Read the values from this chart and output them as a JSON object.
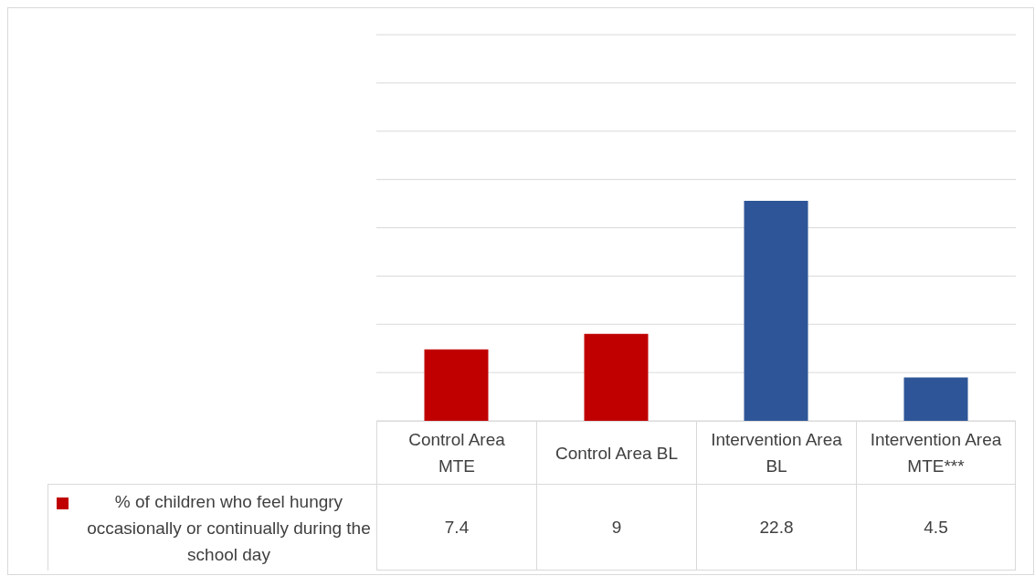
{
  "chart_data": {
    "type": "bar",
    "categories": [
      "Control Area MTE",
      "Control Area BL",
      "Intervention Area BL",
      "Intervention Area MTE***"
    ],
    "series": [
      {
        "name": "% of children who feel hungry occasionally or continually during the school day",
        "color": "#c00000",
        "colors": [
          "#c00000",
          "#c00000",
          "#2e5597",
          "#2e5597"
        ],
        "values": [
          7.4,
          9,
          22.8,
          4.5
        ]
      }
    ],
    "ylim": [
      0,
      40
    ],
    "yticks": [
      {
        "value": 0,
        "label": null
      },
      {
        "value": 5,
        "label": null
      },
      {
        "value": 10,
        "label": null
      },
      {
        "value": 15,
        "label": null
      },
      {
        "value": 20,
        "label": null
      },
      {
        "value": 25,
        "label": null
      },
      {
        "value": 30,
        "label": null
      },
      {
        "value": 35,
        "label": null
      },
      {
        "value": 40,
        "label": null
      }
    ],
    "grid": "y",
    "legend": "bottom left",
    "data_labels": true,
    "tick_labels": "x"
  }
}
